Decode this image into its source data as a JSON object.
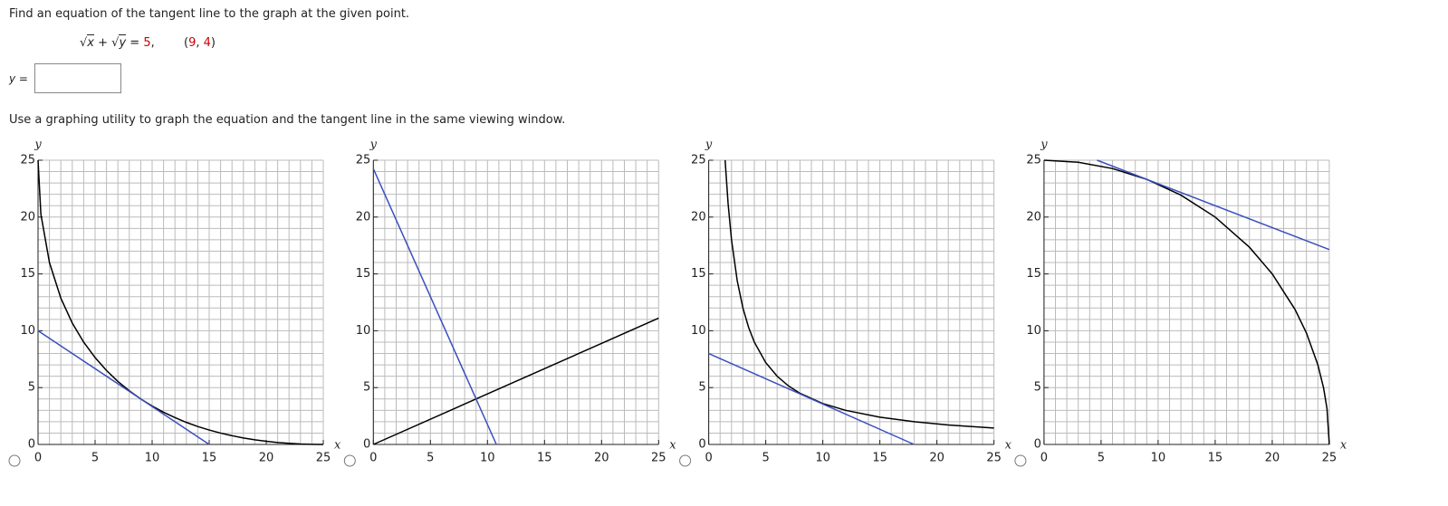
{
  "question": "Find an equation of the tangent line to the graph at the given point.",
  "equation": [
    "√",
    "x",
    " + ",
    "√",
    "y",
    " = ",
    "5",
    ","
  ],
  "point": [
    "(",
    "9",
    ", ",
    "4",
    ")"
  ],
  "answer_label": "y =",
  "instruction": "Use a graphing utility to graph the equation and the tangent line in the same viewing window.",
  "chart_data": [
    {
      "type": "line",
      "xlabel": "x",
      "ylabel": "y",
      "xlim": [
        0,
        25
      ],
      "ylim": [
        0,
        25
      ],
      "xticks": [
        0,
        5,
        10,
        15,
        20,
        25
      ],
      "yticks": [
        0,
        5,
        10,
        15,
        20,
        25
      ],
      "grid": true,
      "series": [
        {
          "color": "#000000",
          "x": [
            0,
            0.25,
            1,
            2,
            3,
            4,
            5,
            6,
            7,
            8,
            9,
            10,
            11,
            12,
            13,
            14,
            15,
            16,
            17,
            18,
            19,
            20,
            21,
            22,
            23,
            24,
            25
          ],
          "values": [
            25,
            20.25,
            16,
            12.86,
            10.68,
            9,
            7.64,
            6.51,
            5.54,
            4.72,
            4,
            3.38,
            2.83,
            2.36,
            1.94,
            1.58,
            1.27,
            1,
            0.77,
            0.57,
            0.41,
            0.28,
            0.17,
            0.1,
            0.04,
            0.01,
            0
          ]
        },
        {
          "color": "#3a4fbf",
          "x": [
            0,
            15
          ],
          "values": [
            10,
            0
          ]
        }
      ]
    },
    {
      "type": "line",
      "xlabel": "x",
      "ylabel": "y",
      "xlim": [
        0,
        25
      ],
      "ylim": [
        0,
        25
      ],
      "xticks": [
        0,
        5,
        10,
        15,
        20,
        25
      ],
      "yticks": [
        0,
        5,
        10,
        15,
        20,
        25
      ],
      "grid": true,
      "series": [
        {
          "color": "#000000",
          "x": [
            0,
            25
          ],
          "values": [
            0,
            11.11
          ]
        },
        {
          "color": "#3a4fbf",
          "x": [
            0,
            10.78
          ],
          "values": [
            24.25,
            0
          ]
        }
      ]
    },
    {
      "type": "line",
      "xlabel": "x",
      "ylabel": "y",
      "xlim": [
        0,
        25
      ],
      "ylim": [
        0,
        25
      ],
      "xticks": [
        0,
        5,
        10,
        15,
        20,
        25
      ],
      "yticks": [
        0,
        5,
        10,
        15,
        20,
        25
      ],
      "grid": true,
      "series": [
        {
          "color": "#000000",
          "x": [
            1.44,
            1.7,
            2,
            2.5,
            3,
            3.5,
            4,
            5,
            6,
            7,
            8,
            10,
            12,
            15,
            18,
            21,
            25
          ],
          "values": [
            25,
            21.18,
            18,
            14.4,
            12,
            10.29,
            9,
            7.2,
            6,
            5.14,
            4.5,
            3.6,
            3,
            2.4,
            2,
            1.71,
            1.44
          ]
        },
        {
          "color": "#3a4fbf",
          "x": [
            0,
            18
          ],
          "values": [
            8,
            0
          ]
        }
      ]
    },
    {
      "type": "line",
      "xlabel": "x",
      "ylabel": "y",
      "xlim": [
        0,
        25
      ],
      "ylim": [
        0,
        25
      ],
      "xticks": [
        0,
        5,
        10,
        15,
        20,
        25
      ],
      "yticks": [
        0,
        5,
        10,
        15,
        20,
        25
      ],
      "grid": true,
      "series": [
        {
          "color": "#000000",
          "x": [
            0,
            3,
            6,
            9,
            12,
            15,
            18,
            20,
            22,
            23,
            24,
            24.5,
            24.8,
            25
          ],
          "values": [
            25,
            24.82,
            24.27,
            23.32,
            21.93,
            20,
            17.35,
            15,
            11.87,
            9.8,
            7,
            4.97,
            3.15,
            0
          ]
        },
        {
          "color": "#3a4fbf",
          "x": [
            4.65,
            25
          ],
          "values": [
            25,
            17.14
          ]
        }
      ]
    }
  ]
}
